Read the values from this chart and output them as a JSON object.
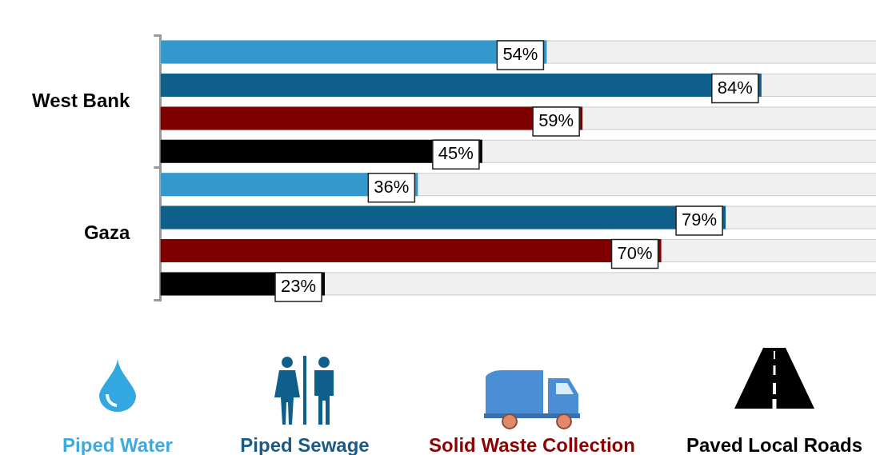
{
  "chart_data": {
    "type": "bar",
    "orientation": "horizontal",
    "categories": [
      "West Bank",
      "Gaza"
    ],
    "xlim": [
      0,
      100
    ],
    "tick_labels": "y",
    "legend": "bottom",
    "series": [
      {
        "name": "Piped Water",
        "color": "#3399cc",
        "values": [
          54,
          36
        ],
        "value_labels": [
          "54%",
          "36%"
        ]
      },
      {
        "name": "Piped Sewage",
        "color": "#0e5f8a",
        "values": [
          84,
          79
        ],
        "value_labels": [
          "84%",
          "79%"
        ]
      },
      {
        "name": "Solid Waste Collection",
        "color": "#800000",
        "values": [
          59,
          70
        ],
        "value_labels": [
          "59%",
          "70%"
        ]
      },
      {
        "name": "Paved Local Roads",
        "color": "#000000",
        "values": [
          45,
          23
        ],
        "value_labels": [
          "45%",
          "23%"
        ]
      }
    ]
  }
}
